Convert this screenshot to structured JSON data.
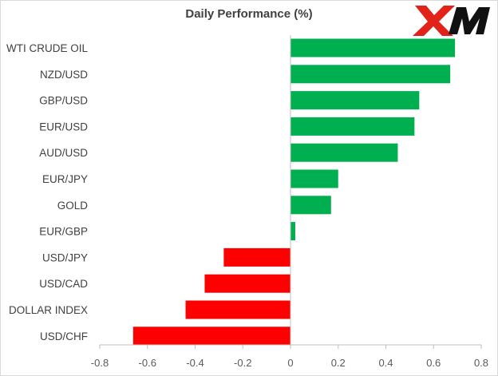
{
  "logo": {
    "text": "XM"
  },
  "chart_data": {
    "type": "bar",
    "orientation": "horizontal",
    "title": "Daily Performance (%)",
    "xlabel": "",
    "ylabel": "",
    "categories": [
      "WTI CRUDE OIL",
      "NZD/USD",
      "GBP/USD",
      "EUR/USD",
      "AUD/USD",
      "EUR/JPY",
      "GOLD",
      "EUR/GBP",
      "USD/JPY",
      "USD/CAD",
      "DOLLAR INDEX",
      "USD/CHF"
    ],
    "values": [
      0.69,
      0.67,
      0.54,
      0.52,
      0.45,
      0.2,
      0.17,
      0.02,
      -0.28,
      -0.36,
      -0.44,
      -0.66
    ],
    "xlim": [
      -0.8,
      0.8
    ],
    "xticks": [
      -0.8,
      -0.6,
      -0.4,
      -0.2,
      0,
      0.2,
      0.4,
      0.6,
      0.8
    ],
    "xtick_labels": [
      "-0.8",
      "-0.6",
      "-0.4",
      "-0.2",
      "0",
      "0.2",
      "0.4",
      "0.6",
      "0.8"
    ],
    "grid": false,
    "legend": "none",
    "colors": {
      "positive": "#00b050",
      "negative": "#ff0000",
      "axis": "#bfbfbf",
      "text": "#404040"
    }
  }
}
